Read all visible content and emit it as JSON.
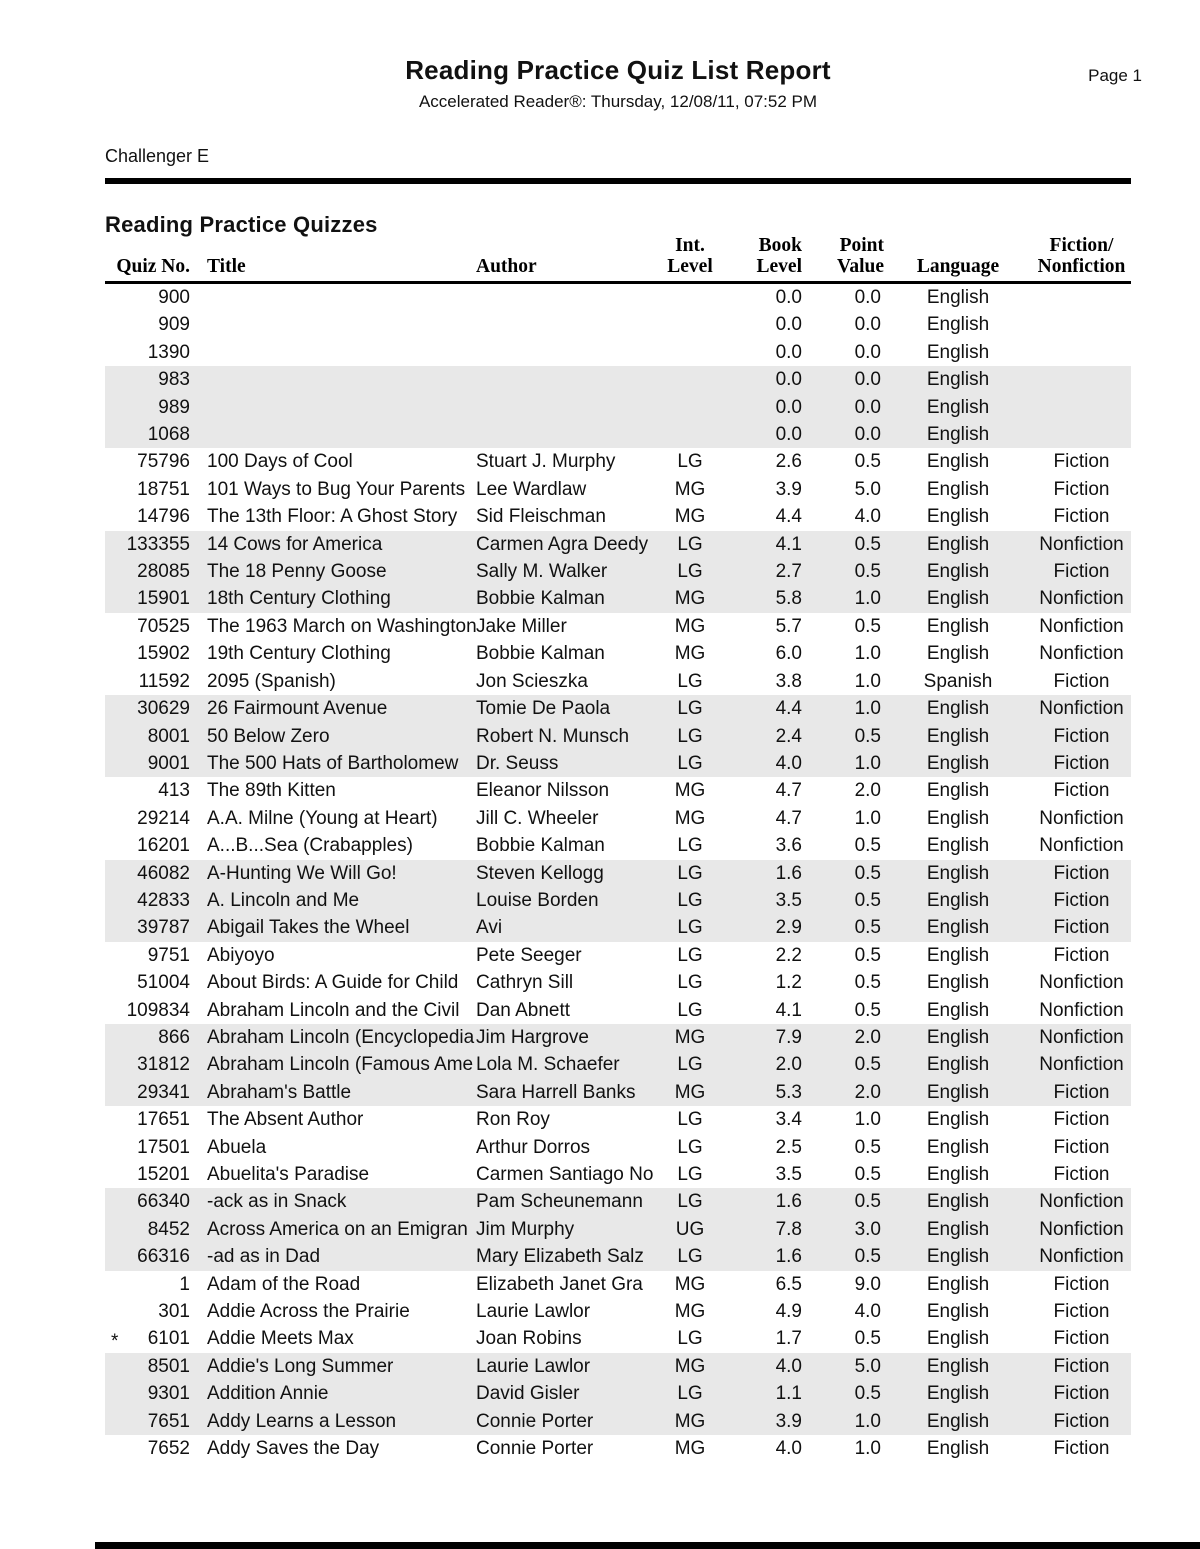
{
  "report": {
    "title": "Reading Practice Quiz List Report",
    "page_label": "Page 1",
    "subtitle": "Accelerated Reader®:  Thursday, 12/08/11, 07:52 PM",
    "class_name": "Challenger E",
    "section_title": "Reading Practice Quizzes"
  },
  "colors": {
    "row_shade": "#e8e8e8",
    "text": "#111111",
    "rule": "#000000"
  },
  "table": {
    "columns": [
      {
        "id": "quiz_no",
        "line1": "",
        "line2": "Quiz No."
      },
      {
        "id": "title",
        "line1": "",
        "line2": "Title"
      },
      {
        "id": "author",
        "line1": "",
        "line2": "Author"
      },
      {
        "id": "int_level",
        "line1": "Int.",
        "line2": "Level"
      },
      {
        "id": "book_level",
        "line1": "Book",
        "line2": "Level"
      },
      {
        "id": "point_value",
        "line1": "Point",
        "line2": "Value"
      },
      {
        "id": "language",
        "line1": "",
        "line2": "Language"
      },
      {
        "id": "fiction",
        "line1": "Fiction/",
        "line2": "Nonfiction"
      }
    ],
    "rows": [
      {
        "star": "",
        "quiz_no": "900",
        "title": "",
        "author": "",
        "int_level": "",
        "book_level": "0.0",
        "point_value": "0.0",
        "language": "English",
        "fiction": ""
      },
      {
        "star": "",
        "quiz_no": "909",
        "title": "",
        "author": "",
        "int_level": "",
        "book_level": "0.0",
        "point_value": "0.0",
        "language": "English",
        "fiction": ""
      },
      {
        "star": "",
        "quiz_no": "1390",
        "title": "",
        "author": "",
        "int_level": "",
        "book_level": "0.0",
        "point_value": "0.0",
        "language": "English",
        "fiction": ""
      },
      {
        "star": "",
        "quiz_no": "983",
        "title": "",
        "author": "",
        "int_level": "",
        "book_level": "0.0",
        "point_value": "0.0",
        "language": "English",
        "fiction": ""
      },
      {
        "star": "",
        "quiz_no": "989",
        "title": "",
        "author": "",
        "int_level": "",
        "book_level": "0.0",
        "point_value": "0.0",
        "language": "English",
        "fiction": ""
      },
      {
        "star": "",
        "quiz_no": "1068",
        "title": "",
        "author": "",
        "int_level": "",
        "book_level": "0.0",
        "point_value": "0.0",
        "language": "English",
        "fiction": ""
      },
      {
        "star": "",
        "quiz_no": "75796",
        "title": "100 Days of Cool",
        "author": "Stuart J. Murphy",
        "int_level": "LG",
        "book_level": "2.6",
        "point_value": "0.5",
        "language": "English",
        "fiction": "Fiction"
      },
      {
        "star": "",
        "quiz_no": "18751",
        "title": "101 Ways to Bug Your Parents",
        "author": "Lee Wardlaw",
        "int_level": "MG",
        "book_level": "3.9",
        "point_value": "5.0",
        "language": "English",
        "fiction": "Fiction"
      },
      {
        "star": "",
        "quiz_no": "14796",
        "title": "The 13th Floor: A Ghost Story",
        "author": "Sid Fleischman",
        "int_level": "MG",
        "book_level": "4.4",
        "point_value": "4.0",
        "language": "English",
        "fiction": "Fiction"
      },
      {
        "star": "",
        "quiz_no": "133355",
        "title": "14 Cows for America",
        "author": "Carmen Agra Deedy",
        "int_level": "LG",
        "book_level": "4.1",
        "point_value": "0.5",
        "language": "English",
        "fiction": "Nonfiction"
      },
      {
        "star": "",
        "quiz_no": "28085",
        "title": "The 18 Penny Goose",
        "author": "Sally M. Walker",
        "int_level": "LG",
        "book_level": "2.7",
        "point_value": "0.5",
        "language": "English",
        "fiction": "Fiction"
      },
      {
        "star": "",
        "quiz_no": "15901",
        "title": "18th Century Clothing",
        "author": "Bobbie Kalman",
        "int_level": "MG",
        "book_level": "5.8",
        "point_value": "1.0",
        "language": "English",
        "fiction": "Nonfiction"
      },
      {
        "star": "",
        "quiz_no": "70525",
        "title": "The 1963 March on Washington",
        "author": "Jake Miller",
        "int_level": "MG",
        "book_level": "5.7",
        "point_value": "0.5",
        "language": "English",
        "fiction": "Nonfiction"
      },
      {
        "star": "",
        "quiz_no": "15902",
        "title": "19th Century Clothing",
        "author": "Bobbie Kalman",
        "int_level": "MG",
        "book_level": "6.0",
        "point_value": "1.0",
        "language": "English",
        "fiction": "Nonfiction"
      },
      {
        "star": "",
        "quiz_no": "11592",
        "title": "2095 (Spanish)",
        "author": "Jon Scieszka",
        "int_level": "LG",
        "book_level": "3.8",
        "point_value": "1.0",
        "language": "Spanish",
        "fiction": "Fiction"
      },
      {
        "star": "",
        "quiz_no": "30629",
        "title": "26 Fairmount Avenue",
        "author": "Tomie De Paola",
        "int_level": "LG",
        "book_level": "4.4",
        "point_value": "1.0",
        "language": "English",
        "fiction": "Nonfiction"
      },
      {
        "star": "",
        "quiz_no": "8001",
        "title": "50 Below Zero",
        "author": "Robert N. Munsch",
        "int_level": "LG",
        "book_level": "2.4",
        "point_value": "0.5",
        "language": "English",
        "fiction": "Fiction"
      },
      {
        "star": "",
        "quiz_no": "9001",
        "title": "The 500 Hats of Bartholomew",
        "author": "Dr. Seuss",
        "int_level": "LG",
        "book_level": "4.0",
        "point_value": "1.0",
        "language": "English",
        "fiction": "Fiction"
      },
      {
        "star": "",
        "quiz_no": "413",
        "title": "The 89th Kitten",
        "author": "Eleanor Nilsson",
        "int_level": "MG",
        "book_level": "4.7",
        "point_value": "2.0",
        "language": "English",
        "fiction": "Fiction"
      },
      {
        "star": "",
        "quiz_no": "29214",
        "title": "A.A. Milne (Young at Heart)",
        "author": "Jill C. Wheeler",
        "int_level": "MG",
        "book_level": "4.7",
        "point_value": "1.0",
        "language": "English",
        "fiction": "Nonfiction"
      },
      {
        "star": "",
        "quiz_no": "16201",
        "title": "A...B...Sea (Crabapples)",
        "author": "Bobbie Kalman",
        "int_level": "LG",
        "book_level": "3.6",
        "point_value": "0.5",
        "language": "English",
        "fiction": "Nonfiction"
      },
      {
        "star": "",
        "quiz_no": "46082",
        "title": "A-Hunting We Will Go!",
        "author": "Steven Kellogg",
        "int_level": "LG",
        "book_level": "1.6",
        "point_value": "0.5",
        "language": "English",
        "fiction": "Fiction"
      },
      {
        "star": "",
        "quiz_no": "42833",
        "title": "A. Lincoln and Me",
        "author": "Louise Borden",
        "int_level": "LG",
        "book_level": "3.5",
        "point_value": "0.5",
        "language": "English",
        "fiction": "Fiction"
      },
      {
        "star": "",
        "quiz_no": "39787",
        "title": "Abigail Takes the Wheel",
        "author": "Avi",
        "int_level": "LG",
        "book_level": "2.9",
        "point_value": "0.5",
        "language": "English",
        "fiction": "Fiction"
      },
      {
        "star": "",
        "quiz_no": "9751",
        "title": "Abiyoyo",
        "author": "Pete Seeger",
        "int_level": "LG",
        "book_level": "2.2",
        "point_value": "0.5",
        "language": "English",
        "fiction": "Fiction"
      },
      {
        "star": "",
        "quiz_no": "51004",
        "title": "About Birds: A Guide for Child",
        "author": "Cathryn Sill",
        "int_level": "LG",
        "book_level": "1.2",
        "point_value": "0.5",
        "language": "English",
        "fiction": "Nonfiction"
      },
      {
        "star": "",
        "quiz_no": "109834",
        "title": "Abraham Lincoln and the Civil",
        "author": "Dan Abnett",
        "int_level": "LG",
        "book_level": "4.1",
        "point_value": "0.5",
        "language": "English",
        "fiction": "Nonfiction"
      },
      {
        "star": "",
        "quiz_no": "866",
        "title": "Abraham Lincoln (Encyclopedia",
        "author": "Jim Hargrove",
        "int_level": "MG",
        "book_level": "7.9",
        "point_value": "2.0",
        "language": "English",
        "fiction": "Nonfiction"
      },
      {
        "star": "",
        "quiz_no": "31812",
        "title": "Abraham Lincoln (Famous Ame",
        "author": "Lola M. Schaefer",
        "int_level": "LG",
        "book_level": "2.0",
        "point_value": "0.5",
        "language": "English",
        "fiction": "Nonfiction"
      },
      {
        "star": "",
        "quiz_no": "29341",
        "title": "Abraham's Battle",
        "author": "Sara Harrell Banks",
        "int_level": "MG",
        "book_level": "5.3",
        "point_value": "2.0",
        "language": "English",
        "fiction": "Fiction"
      },
      {
        "star": "",
        "quiz_no": "17651",
        "title": "The Absent Author",
        "author": "Ron Roy",
        "int_level": "LG",
        "book_level": "3.4",
        "point_value": "1.0",
        "language": "English",
        "fiction": "Fiction"
      },
      {
        "star": "",
        "quiz_no": "17501",
        "title": "Abuela",
        "author": "Arthur Dorros",
        "int_level": "LG",
        "book_level": "2.5",
        "point_value": "0.5",
        "language": "English",
        "fiction": "Fiction"
      },
      {
        "star": "",
        "quiz_no": "15201",
        "title": "Abuelita's Paradise",
        "author": "Carmen Santiago No",
        "int_level": "LG",
        "book_level": "3.5",
        "point_value": "0.5",
        "language": "English",
        "fiction": "Fiction"
      },
      {
        "star": "",
        "quiz_no": "66340",
        "title": "-ack as in Snack",
        "author": "Pam Scheunemann",
        "int_level": "LG",
        "book_level": "1.6",
        "point_value": "0.5",
        "language": "English",
        "fiction": "Nonfiction"
      },
      {
        "star": "",
        "quiz_no": "8452",
        "title": "Across America on an Emigran",
        "author": "Jim Murphy",
        "int_level": "UG",
        "book_level": "7.8",
        "point_value": "3.0",
        "language": "English",
        "fiction": "Nonfiction"
      },
      {
        "star": "",
        "quiz_no": "66316",
        "title": "-ad as in Dad",
        "author": "Mary Elizabeth Salz",
        "int_level": "LG",
        "book_level": "1.6",
        "point_value": "0.5",
        "language": "English",
        "fiction": "Nonfiction"
      },
      {
        "star": "",
        "quiz_no": "1",
        "title": "Adam of the Road",
        "author": "Elizabeth Janet Gra",
        "int_level": "MG",
        "book_level": "6.5",
        "point_value": "9.0",
        "language": "English",
        "fiction": "Fiction"
      },
      {
        "star": "",
        "quiz_no": "301",
        "title": "Addie Across the Prairie",
        "author": "Laurie Lawlor",
        "int_level": "MG",
        "book_level": "4.9",
        "point_value": "4.0",
        "language": "English",
        "fiction": "Fiction"
      },
      {
        "star": "*",
        "quiz_no": "6101",
        "title": "Addie Meets Max",
        "author": "Joan Robins",
        "int_level": "LG",
        "book_level": "1.7",
        "point_value": "0.5",
        "language": "English",
        "fiction": "Fiction"
      },
      {
        "star": "",
        "quiz_no": "8501",
        "title": "Addie's Long Summer",
        "author": "Laurie Lawlor",
        "int_level": "MG",
        "book_level": "4.0",
        "point_value": "5.0",
        "language": "English",
        "fiction": "Fiction"
      },
      {
        "star": "",
        "quiz_no": "9301",
        "title": "Addition Annie",
        "author": "David Gisler",
        "int_level": "LG",
        "book_level": "1.1",
        "point_value": "0.5",
        "language": "English",
        "fiction": "Fiction"
      },
      {
        "star": "",
        "quiz_no": "7651",
        "title": "Addy Learns a Lesson",
        "author": "Connie Porter",
        "int_level": "MG",
        "book_level": "3.9",
        "point_value": "1.0",
        "language": "English",
        "fiction": "Fiction"
      },
      {
        "star": "",
        "quiz_no": "7652",
        "title": "Addy Saves the Day",
        "author": "Connie Porter",
        "int_level": "MG",
        "book_level": "4.0",
        "point_value": "1.0",
        "language": "English",
        "fiction": "Fiction"
      }
    ]
  }
}
